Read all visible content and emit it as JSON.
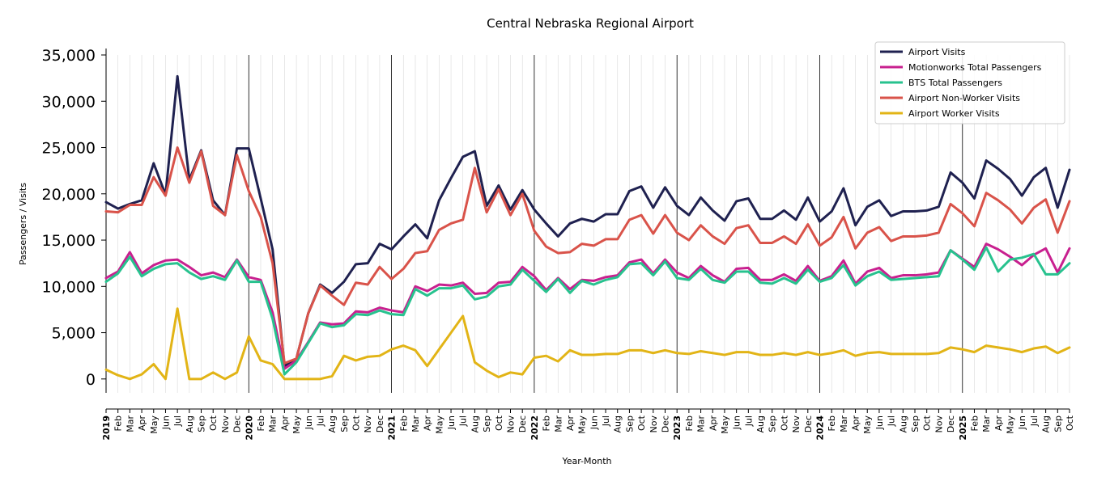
{
  "chart_data": {
    "type": "line",
    "title": "Central Nebraska Regional Airport",
    "xlabel": "Year-Month",
    "ylabel": "Passengers / Visits",
    "ylim": [
      -1500,
      35000
    ],
    "yticks": [
      0,
      5000,
      10000,
      15000,
      20000,
      25000,
      30000,
      35000
    ],
    "ytick_labels": [
      "0",
      "5,000",
      "10,000",
      "15,000",
      "20,000",
      "25,000",
      "30,000",
      "35,000"
    ],
    "grid": "vertical monthly gridlines, darker lines at each January",
    "legend_position": "top-right",
    "x": [
      "2019-01",
      "2019-02",
      "2019-03",
      "2019-04",
      "2019-05",
      "2019-06",
      "2019-07",
      "2019-08",
      "2019-09",
      "2019-10",
      "2019-11",
      "2019-12",
      "2020-01",
      "2020-02",
      "2020-03",
      "2020-04",
      "2020-05",
      "2020-06",
      "2020-07",
      "2020-08",
      "2020-09",
      "2020-10",
      "2020-11",
      "2020-12",
      "2021-01",
      "2021-02",
      "2021-03",
      "2021-04",
      "2021-05",
      "2021-06",
      "2021-07",
      "2021-08",
      "2021-09",
      "2021-10",
      "2021-11",
      "2021-12",
      "2022-01",
      "2022-02",
      "2022-03",
      "2022-04",
      "2022-05",
      "2022-06",
      "2022-07",
      "2022-08",
      "2022-09",
      "2022-10",
      "2022-11",
      "2022-12",
      "2023-01",
      "2023-02",
      "2023-03",
      "2023-04",
      "2023-05",
      "2023-06",
      "2023-07",
      "2023-08",
      "2023-09",
      "2023-10",
      "2023-11",
      "2023-12",
      "2024-01",
      "2024-02",
      "2024-03",
      "2024-04",
      "2024-05",
      "2024-06",
      "2024-07",
      "2024-08",
      "2024-09",
      "2024-10",
      "2024-11",
      "2024-12",
      "2025-01",
      "2025-02",
      "2025-03",
      "2025-04",
      "2025-05",
      "2025-06",
      "2025-07",
      "2025-08",
      "2025-09",
      "2025-10"
    ],
    "x_tick_labels": [
      "2019",
      "Feb",
      "Mar",
      "Apr",
      "May",
      "Jun",
      "Jul",
      "Aug",
      "Sep",
      "Oct",
      "Nov",
      "Dec",
      "2020",
      "Feb",
      "Mar",
      "Apr",
      "May",
      "Jun",
      "Jul",
      "Aug",
      "Sep",
      "Oct",
      "Nov",
      "Dec",
      "2021",
      "Feb",
      "Mar",
      "Apr",
      "May",
      "Jun",
      "Jul",
      "Aug",
      "Sep",
      "Oct",
      "Nov",
      "Dec",
      "2022",
      "Feb",
      "Mar",
      "Apr",
      "May",
      "Jun",
      "Jul",
      "Aug",
      "Sep",
      "Oct",
      "Nov",
      "Dec",
      "2023",
      "Feb",
      "Mar",
      "Apr",
      "May",
      "Jun",
      "Jul",
      "Aug",
      "Sep",
      "Oct",
      "Nov",
      "Dec",
      "2024",
      "Feb",
      "Mar",
      "Apr",
      "May",
      "Jun",
      "Jul",
      "Aug",
      "Sep",
      "Oct",
      "Nov",
      "Dec",
      "2025",
      "Feb",
      "Mar",
      "Apr",
      "May",
      "Jun",
      "Jul",
      "Aug",
      "Sep",
      "Oct"
    ],
    "series": [
      {
        "name": "Airport Visits",
        "color": "#1f2150",
        "values": [
          19100,
          18400,
          18900,
          19300,
          23300,
          19900,
          32700,
          21500,
          24700,
          19300,
          17700,
          24900,
          24900,
          19500,
          14000,
          1400,
          2200,
          7100,
          10200,
          9300,
          10500,
          12400,
          12500,
          14600,
          14000,
          15400,
          16700,
          15200,
          19300,
          21700,
          24000,
          24600,
          18700,
          20900,
          18300,
          20400,
          18300,
          16800,
          15400,
          16800,
          17300,
          17000,
          17800,
          17800,
          20300,
          20800,
          18500,
          20700,
          18700,
          17700,
          19600,
          18200,
          17100,
          19200,
          19500,
          17300,
          17300,
          18200,
          17200,
          19600,
          17000,
          18100,
          20600,
          16600,
          18600,
          19300,
          17600,
          18100,
          18100,
          18200,
          18600,
          22300,
          21200,
          19500,
          23600,
          22700,
          21600,
          19800,
          21800,
          22800,
          18500,
          22600
        ]
      },
      {
        "name": "Motionworks Total Passengers",
        "color": "#c8208f",
        "values": [
          10900,
          11600,
          13700,
          11400,
          12300,
          12800,
          12900,
          12100,
          11200,
          11500,
          11000,
          12900,
          11000,
          10700,
          7200,
          1100,
          2000,
          4000,
          6100,
          5900,
          6000,
          7300,
          7200,
          7700,
          7400,
          7200,
          10000,
          9500,
          10200,
          10100,
          10400,
          9200,
          9300,
          10400,
          10500,
          12100,
          11100,
          9600,
          10900,
          9700,
          10700,
          10600,
          11000,
          11200,
          12600,
          12900,
          11400,
          12900,
          11500,
          10900,
          12200,
          11200,
          10500,
          11900,
          12000,
          10700,
          10700,
          11300,
          10600,
          12200,
          10600,
          11100,
          12800,
          10300,
          11600,
          12000,
          10900,
          11200,
          11200,
          11300,
          11500,
          13900,
          13000,
          12100,
          14600,
          14000,
          13200,
          12300,
          13400,
          14100,
          11500,
          14100
        ]
      },
      {
        "name": "BTS Total Passengers",
        "color": "#27c28e",
        "values": [
          10500,
          11400,
          13200,
          11100,
          11900,
          12400,
          12500,
          11500,
          10800,
          11100,
          10700,
          12800,
          10500,
          10500,
          6500,
          500,
          1800,
          3900,
          6000,
          5600,
          5800,
          7000,
          6900,
          7400,
          7000,
          6900,
          9700,
          9000,
          9800,
          9800,
          10100,
          8600,
          8900,
          10000,
          10200,
          11800,
          10600,
          9400,
          10800,
          9300,
          10600,
          10200,
          10700,
          11000,
          12400,
          12500,
          11200,
          12700,
          10900,
          10700,
          11900,
          10700,
          10400,
          11600,
          11600,
          10400,
          10300,
          10900,
          10300,
          11800,
          10500,
          10900,
          12300,
          10100,
          11100,
          11600,
          10700,
          10800,
          10900,
          11000,
          11100,
          13900,
          12900,
          11800,
          14200,
          11600,
          12900,
          13100,
          13500,
          11300,
          11300,
          12500
        ]
      },
      {
        "name": "Airport Non-Worker Visits",
        "color": "#d9534a",
        "values": [
          18100,
          18000,
          18800,
          18800,
          21800,
          19800,
          25000,
          21200,
          24600,
          18700,
          17700,
          24200,
          20300,
          17500,
          12500,
          1700,
          2200,
          7100,
          10100,
          9000,
          8000,
          10400,
          10200,
          12100,
          10800,
          11900,
          13600,
          13800,
          16100,
          16800,
          17200,
          22800,
          18000,
          20500,
          17700,
          20000,
          16000,
          14300,
          13600,
          13700,
          14600,
          14400,
          15100,
          15100,
          17200,
          17700,
          15700,
          17700,
          15800,
          15000,
          16600,
          15400,
          14600,
          16300,
          16600,
          14700,
          14700,
          15400,
          14600,
          16700,
          14400,
          15300,
          17500,
          14100,
          15800,
          16400,
          14900,
          15400,
          15400,
          15500,
          15800,
          18900,
          17900,
          16500,
          20100,
          19300,
          18300,
          16800,
          18500,
          19400,
          15800,
          19200
        ]
      },
      {
        "name": "Airport Worker Visits",
        "color": "#e2b416",
        "values": [
          1000,
          400,
          0,
          500,
          1600,
          0,
          7600,
          0,
          0,
          700,
          0,
          700,
          4600,
          2000,
          1600,
          0,
          0,
          0,
          0,
          300,
          2500,
          2000,
          2400,
          2500,
          3200,
          3600,
          3100,
          1400,
          3200,
          5000,
          6800,
          1800,
          900,
          200,
          700,
          500,
          2300,
          2500,
          1900,
          3100,
          2600,
          2600,
          2700,
          2700,
          3100,
          3100,
          2800,
          3100,
          2800,
          2700,
          3000,
          2800,
          2600,
          2900,
          2900,
          2600,
          2600,
          2800,
          2600,
          2900,
          2600,
          2800,
          3100,
          2500,
          2800,
          2900,
          2700,
          2700,
          2700,
          2700,
          2800,
          3400,
          3200,
          2900,
          3600,
          3400,
          3200,
          2900,
          3300,
          3500,
          2800,
          3400
        ]
      }
    ]
  }
}
